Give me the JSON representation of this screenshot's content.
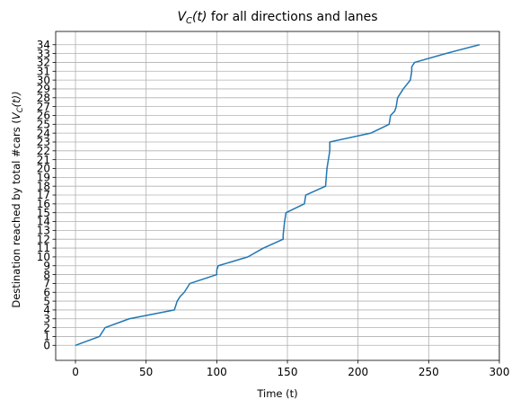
{
  "chart_data": {
    "type": "line",
    "title": "V_C(t) for all directions and lanes",
    "title_parts": {
      "prefix": "",
      "var": "V",
      "sub": "C",
      "arg": "(t)",
      "rest": " for all directions and lanes"
    },
    "xlabel": "Time (t)",
    "ylabel": "Destination reached by total #cars (V_C(t))",
    "ylabel_parts": {
      "prefix": "Destination reached by total #cars (",
      "var": "V",
      "sub": "C",
      "arg": "(t))"
    },
    "xlim": [
      -14,
      300
    ],
    "ylim": [
      -1.7,
      35.5
    ],
    "xticks": [
      0,
      50,
      100,
      150,
      200,
      250,
      300
    ],
    "yticks": [
      0,
      1,
      2,
      3,
      4,
      5,
      6,
      7,
      8,
      9,
      10,
      11,
      12,
      13,
      14,
      15,
      16,
      17,
      18,
      19,
      20,
      21,
      22,
      23,
      24,
      25,
      26,
      27,
      28,
      29,
      30,
      31,
      32,
      33,
      34
    ],
    "grid": true,
    "line_color": "#1f77b4",
    "series": [
      {
        "x": [
          0,
          17,
          21,
          38,
          70,
          71,
          72,
          74,
          77,
          81,
          100,
          100,
          101,
          122,
          133,
          147,
          147,
          148,
          149,
          162,
          163,
          177,
          178,
          179,
          180,
          180,
          209,
          222,
          223,
          226,
          227,
          228,
          232,
          237,
          238,
          238,
          240,
          262,
          286
        ],
        "y": [
          0,
          1,
          2,
          3,
          4,
          4.5,
          5,
          5.5,
          6,
          7,
          8,
          8.5,
          9,
          10,
          11,
          12,
          12.5,
          14,
          15,
          16,
          17,
          18,
          20,
          21,
          22,
          23,
          24,
          25,
          26,
          26.5,
          27,
          28,
          29,
          30,
          31,
          31.5,
          32,
          33,
          34
        ]
      }
    ]
  }
}
